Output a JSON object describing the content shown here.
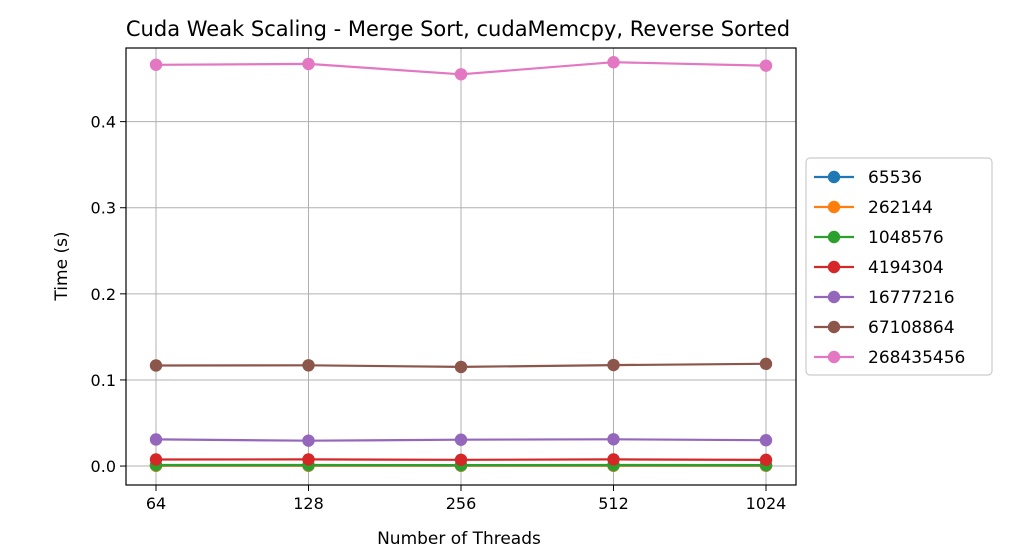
{
  "chart_data": {
    "type": "line",
    "title": "Cuda Weak Scaling - Merge Sort, cudaMemcpy, Reverse Sorted",
    "xlabel": "Number of Threads",
    "ylabel": "Time (s)",
    "x_scale": "log2",
    "x": [
      64,
      128,
      256,
      512,
      1024
    ],
    "x_ticks": [
      64,
      128,
      256,
      512,
      1024
    ],
    "x_tick_labels": [
      "64",
      "128",
      "256",
      "512",
      "1024"
    ],
    "y_ticks": [
      0.0,
      0.1,
      0.2,
      0.3,
      0.4
    ],
    "y_tick_labels": [
      "0.0",
      "0.1",
      "0.2",
      "0.3",
      "0.4"
    ],
    "ylim": [
      -0.022,
      0.4855
    ],
    "grid": true,
    "legend_position": "outside-right",
    "series": [
      {
        "name": "65536",
        "color": "#1f77b4",
        "values": [
          0.0003,
          0.0003,
          0.0003,
          0.0003,
          0.0003
        ]
      },
      {
        "name": "262144",
        "color": "#ff7f0e",
        "values": [
          0.0005,
          0.0005,
          0.0005,
          0.0005,
          0.0005
        ]
      },
      {
        "name": "1048576",
        "color": "#2ca02c",
        "values": [
          0.0012,
          0.0012,
          0.0011,
          0.0012,
          0.0011
        ]
      },
      {
        "name": "4194304",
        "color": "#d62728",
        "values": [
          0.0076,
          0.0077,
          0.0073,
          0.0077,
          0.0072
        ]
      },
      {
        "name": "16777216",
        "color": "#9467bd",
        "values": [
          0.0309,
          0.0295,
          0.0306,
          0.0311,
          0.03
        ]
      },
      {
        "name": "67108864",
        "color": "#8c564b",
        "values": [
          0.1168,
          0.117,
          0.1151,
          0.1173,
          0.1187
        ]
      },
      {
        "name": "268435456",
        "color": "#e377c2",
        "values": [
          0.466,
          0.467,
          0.455,
          0.469,
          0.465
        ]
      }
    ]
  }
}
